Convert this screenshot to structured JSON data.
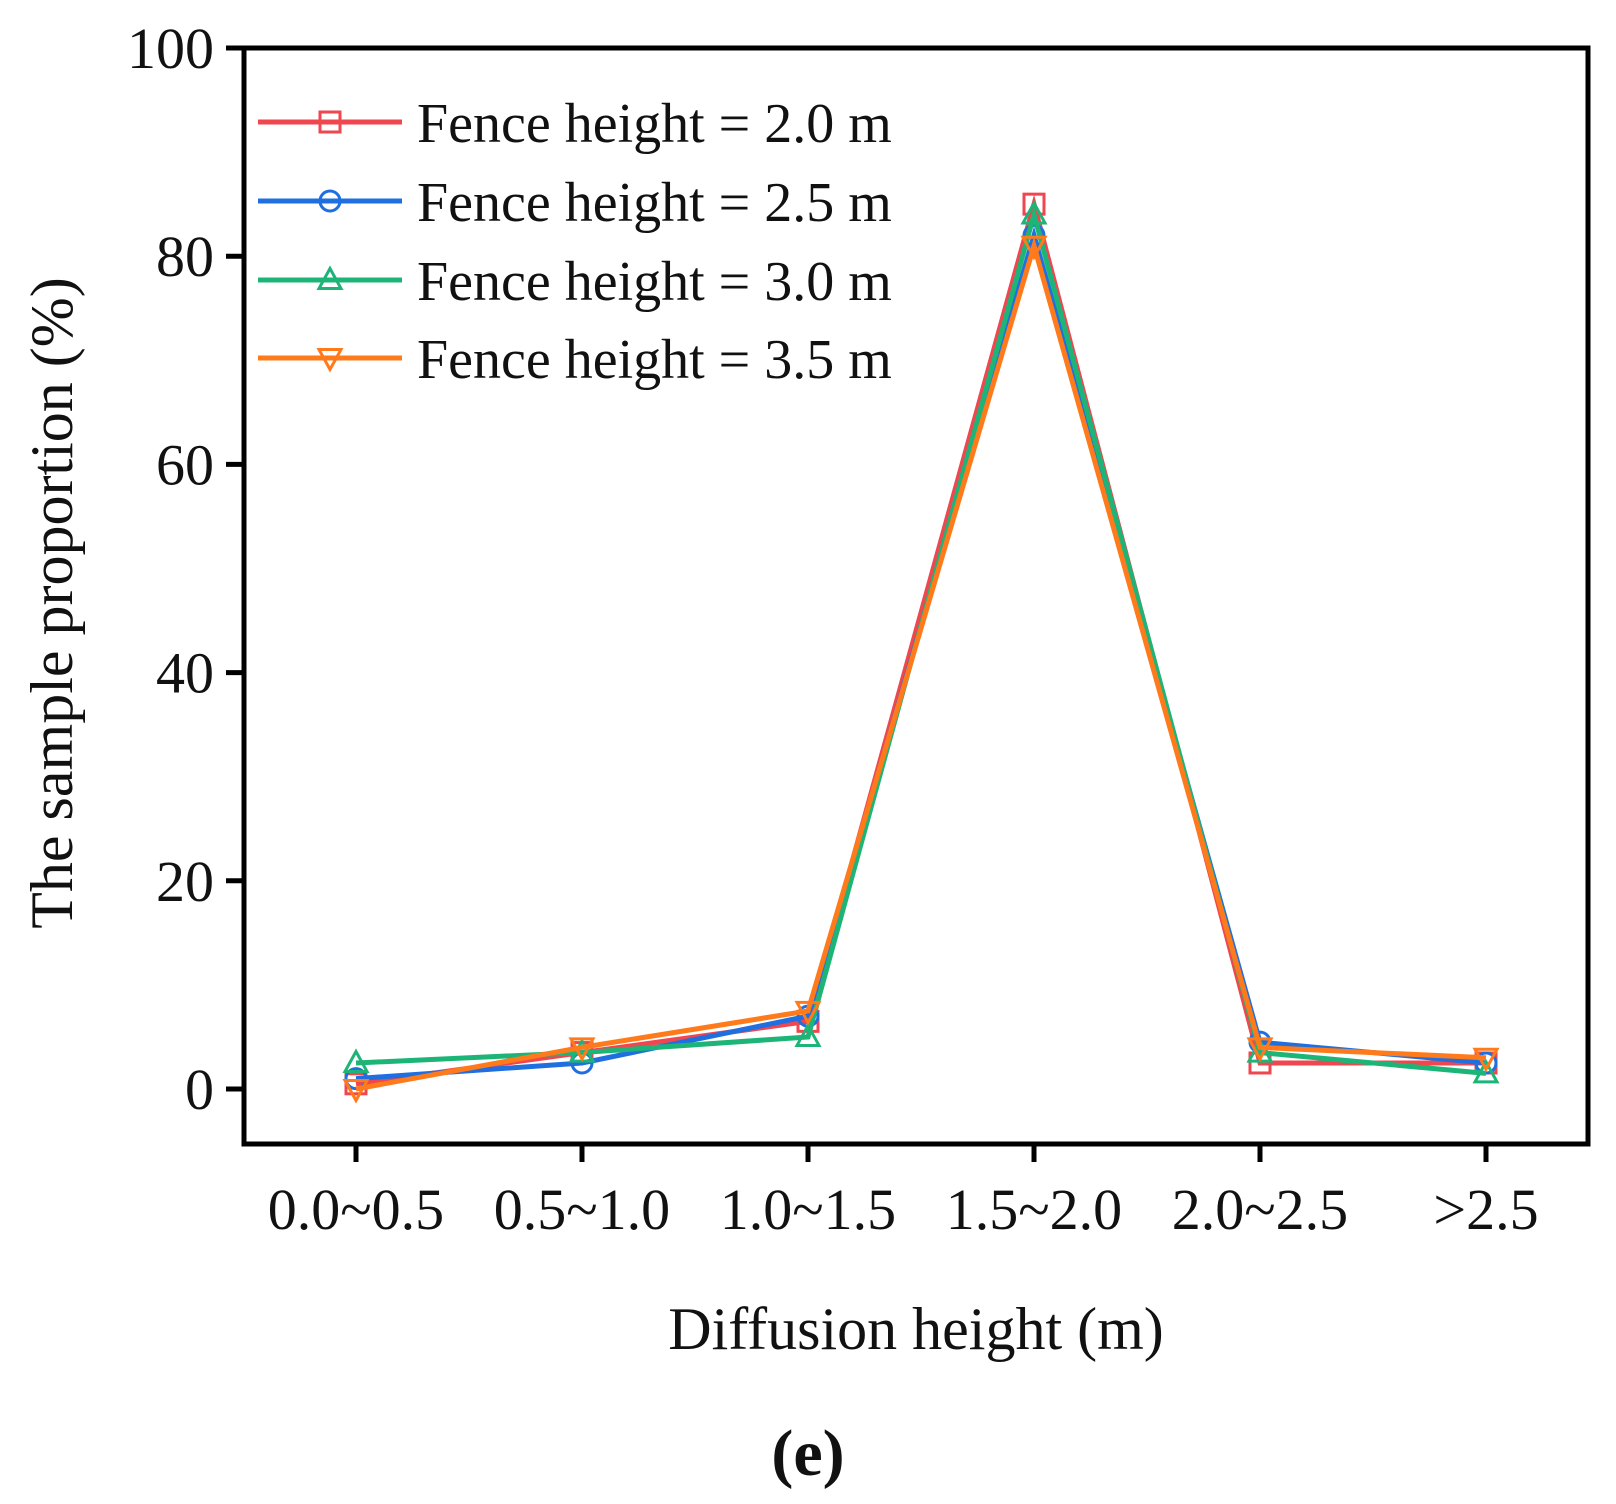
{
  "chart_data": {
    "type": "line",
    "title": "",
    "xlabel": "Diffusion height (m)",
    "ylabel": "The sample proportion (%)",
    "panel_label": "(e)",
    "categories": [
      "0.0~0.5",
      "0.5~1.0",
      "1.0~1.5",
      "1.5~2.0",
      "2.0~2.5",
      ">2.5"
    ],
    "ylim": [
      -5,
      100
    ],
    "yticks": [
      "0",
      "20",
      "40",
      "60",
      "80",
      "100"
    ],
    "grid": false,
    "legend_position": "top-left",
    "series": [
      {
        "name": "Fence height = 2.0 m",
        "color": "#f0464f",
        "marker": "square",
        "values": [
          0.5,
          3.5,
          6.5,
          85.0,
          2.5,
          2.5
        ]
      },
      {
        "name": "Fence height = 2.5 m",
        "color": "#1f6fe0",
        "marker": "circle",
        "values": [
          1.0,
          2.5,
          7.0,
          82.0,
          4.5,
          2.5
        ]
      },
      {
        "name": "Fence height = 3.0 m",
        "color": "#1db577",
        "marker": "triangle-up",
        "values": [
          2.5,
          3.5,
          5.0,
          84.0,
          3.5,
          1.5
        ]
      },
      {
        "name": "Fence height = 3.5 m",
        "color": "#ff7a1a",
        "marker": "triangle-down",
        "values": [
          0.0,
          4.0,
          7.5,
          81.0,
          4.0,
          3.0
        ]
      }
    ]
  }
}
